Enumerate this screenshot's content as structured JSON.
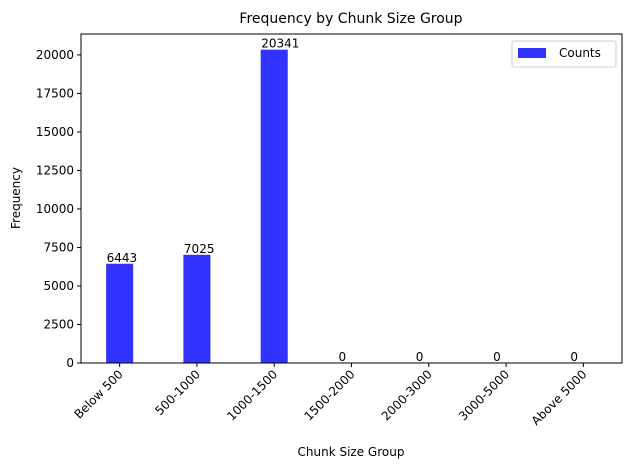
{
  "chart_data": {
    "type": "bar",
    "title": "Frequency by Chunk Size Group",
    "xlabel": "Chunk Size Group",
    "ylabel": "Frequency",
    "categories": [
      "Below 500",
      "500-1000",
      "1000-1500",
      "1500-2000",
      "2000-3000",
      "3000-5000",
      "Above 5000"
    ],
    "series": [
      {
        "name": "Counts",
        "values": [
          6443,
          7025,
          20341,
          0,
          0,
          0,
          0
        ],
        "labels": [
          "6443",
          "7025",
          "20341",
          "0",
          "0",
          "0",
          "0"
        ],
        "color": "#3333ff"
      }
    ],
    "yticks": [
      0,
      2500,
      5000,
      7500,
      10000,
      12500,
      15000,
      17500,
      20000
    ],
    "ytick_labels": [
      "0",
      "2500",
      "5000",
      "7500",
      "10000",
      "12500",
      "15000",
      "17500",
      "20000"
    ],
    "ylim": [
      0,
      21358
    ],
    "grid": false,
    "legend_position": "top-right"
  }
}
